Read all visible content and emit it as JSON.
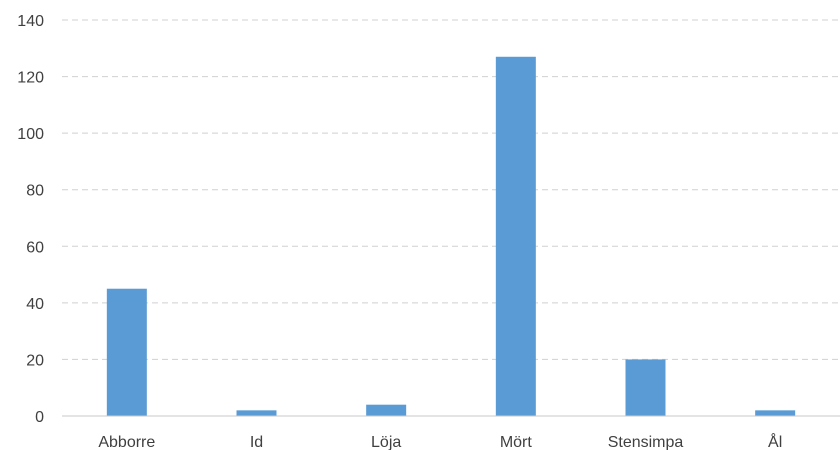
{
  "chart_data": {
    "type": "bar",
    "title": "",
    "xlabel": "",
    "ylabel": "",
    "categories": [
      "Abborre",
      "Id",
      "Löja",
      "Mört",
      "Stensimpa",
      "Ål"
    ],
    "values": [
      45,
      2,
      4,
      127,
      20,
      2
    ],
    "ylim": [
      0,
      140
    ],
    "yticks": [
      0,
      20,
      40,
      60,
      80,
      100,
      120,
      140
    ],
    "grid": true,
    "legend": "none",
    "bar_color": "#5b9bd5"
  }
}
